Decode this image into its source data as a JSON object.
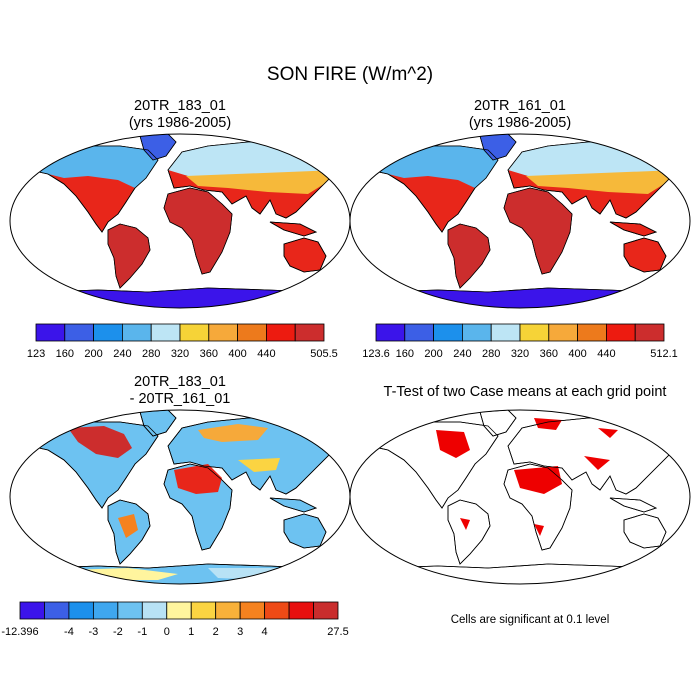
{
  "title": "SON FIRE (W/m^2)",
  "panels": [
    {
      "line1": "20TR_183_01",
      "line2": "(yrs 1986-2005)"
    },
    {
      "line1": "20TR_161_01",
      "line2": "(yrs 1986-2005)"
    },
    {
      "line1": "20TR_183_01",
      "line2": "- 20TR_161_01"
    },
    {
      "line1": "T-Test of two Case means at each grid point"
    }
  ],
  "colorbars": [
    {
      "colors": [
        "#3b14ea",
        "#3c5fe6",
        "#1c90ec",
        "#5ab5ec",
        "#bde5f5",
        "#f6d337",
        "#f6a93a",
        "#ed7a1c",
        "#ed1b10",
        "#cc2d2d"
      ],
      "labels": [
        "123",
        "160",
        "200",
        "240",
        "280",
        "320",
        "360",
        "400",
        "440",
        "505.5"
      ]
    },
    {
      "colors": [
        "#3b14ea",
        "#3c5fe6",
        "#1c90ec",
        "#5ab5ec",
        "#bde5f5",
        "#f6d337",
        "#f6a93a",
        "#ed7a1c",
        "#ed1b10",
        "#cc2d2d"
      ],
      "labels": [
        "123.6",
        "160",
        "200",
        "240",
        "280",
        "320",
        "360",
        "400",
        "440",
        "512.1"
      ]
    },
    {
      "colors": [
        "#3b14ea",
        "#3c5fe6",
        "#1c90ec",
        "#3fa7ef",
        "#6dc2f1",
        "#b8e2f5",
        "#fff59e",
        "#fbd442",
        "#f8b13a",
        "#f5821f",
        "#ee4a16",
        "#e8100f",
        "#c92d2d"
      ],
      "labels": [
        "-12.396",
        "-4",
        "-3",
        "-2",
        "-1",
        "0",
        "1",
        "2",
        "3",
        "4",
        "27.5"
      ]
    }
  ],
  "note": "Cells are significant at 0.1 level",
  "colors": {
    "ocean": "#ffffff",
    "coast": "#000000",
    "significant": "#ee0000"
  }
}
